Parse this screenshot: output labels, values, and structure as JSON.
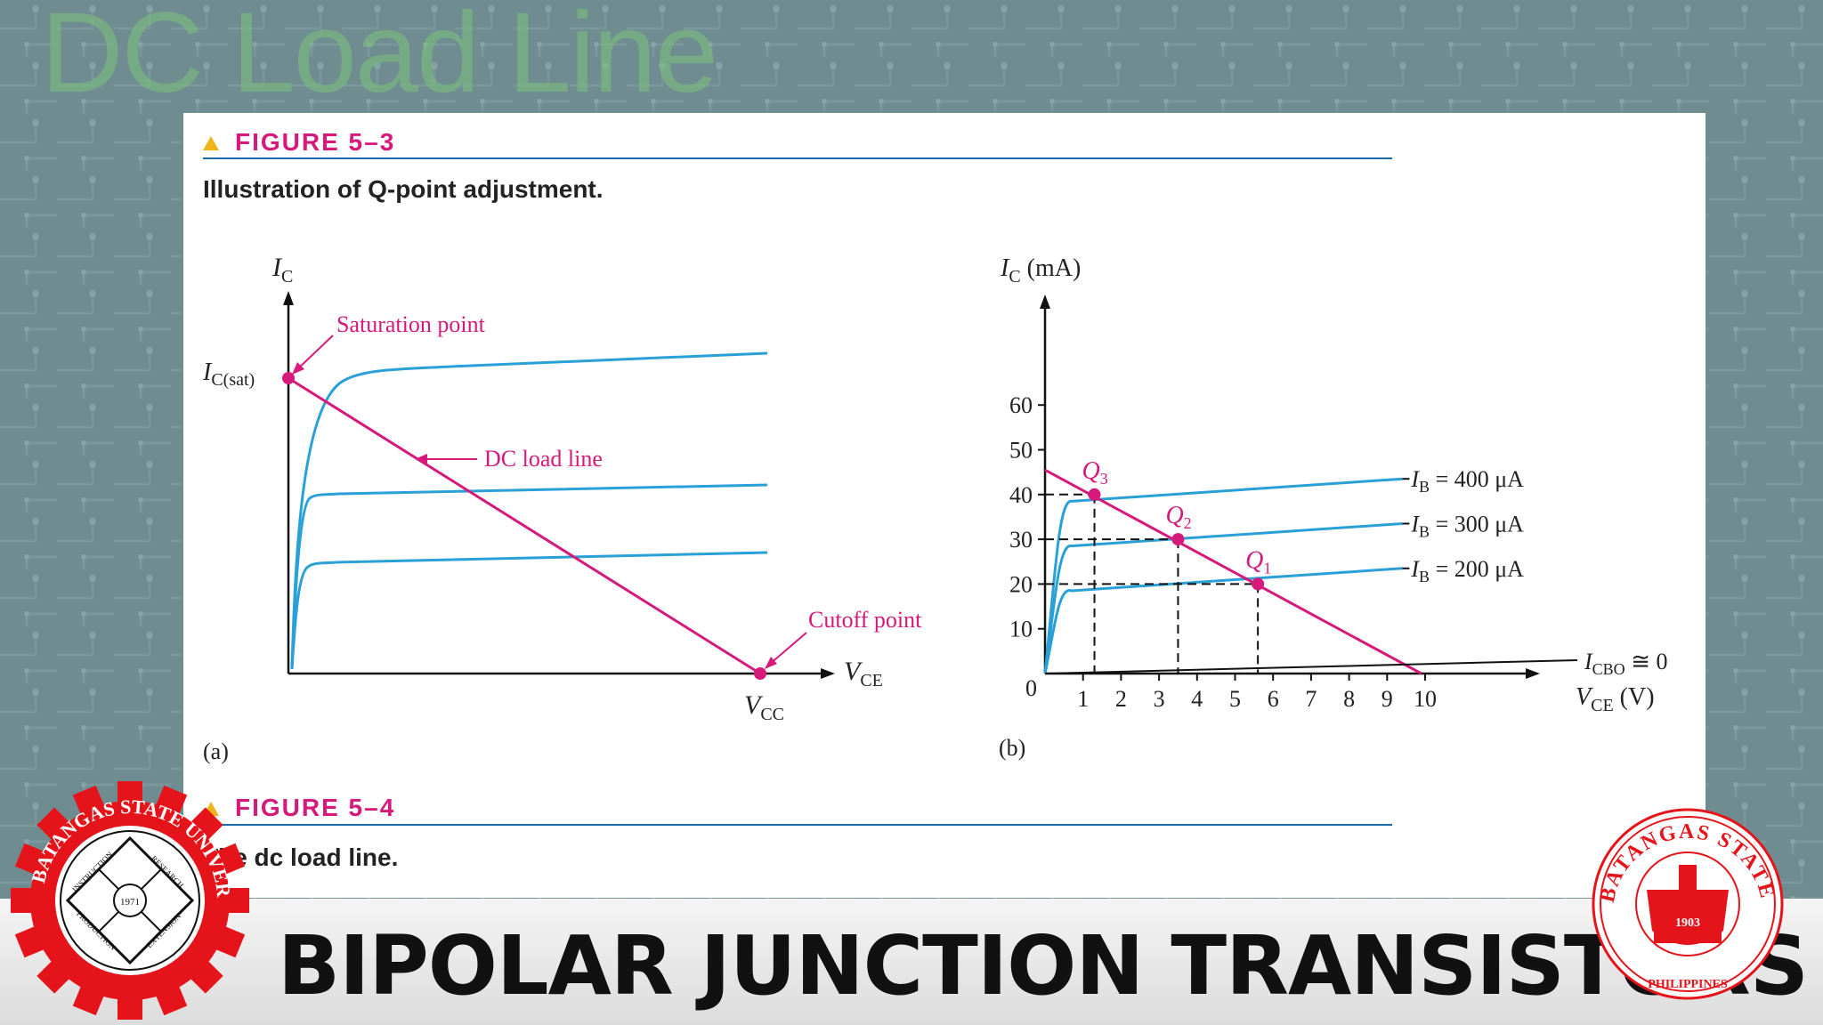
{
  "slide": {
    "title": "DC Load Line",
    "footer_title": "BIPOLAR JUNCTION TRANSISTORS"
  },
  "figure_5_3": {
    "label": "FIGURE 5–3",
    "caption": "Illustration of Q-point adjustment."
  },
  "figure_5_4": {
    "label": "FIGURE 5–4",
    "caption": "The dc load line."
  },
  "diagram_a": {
    "panel_label": "(a)",
    "y_axis": "I",
    "y_axis_sub": "C",
    "x_axis": "V",
    "x_axis_sub": "CE",
    "ic_sat": "I",
    "ic_sat_sub": "C(sat)",
    "vcc": "V",
    "vcc_sub": "CC",
    "saturation_label": "Saturation point",
    "load_line_label": "DC load line",
    "cutoff_label": "Cutoff point"
  },
  "diagram_b": {
    "panel_label": "(b)",
    "y_axis": "I",
    "y_axis_sub": "C",
    "y_unit": " (mA)",
    "x_axis": "V",
    "x_axis_sub": "CE",
    "x_unit": " (V)",
    "origin": "0",
    "y_ticks": [
      "10",
      "20",
      "30",
      "40",
      "50",
      "60"
    ],
    "x_ticks": [
      "1",
      "2",
      "3",
      "4",
      "5",
      "6",
      "7",
      "8",
      "9",
      "10"
    ],
    "curves": [
      {
        "ib_label": "I",
        "ib_sub": "B",
        "ib_value": " = 400 μA",
        "ic_mA": 40
      },
      {
        "ib_label": "I",
        "ib_sub": "B",
        "ib_value": " = 300 μA",
        "ic_mA": 30
      },
      {
        "ib_label": "I",
        "ib_sub": "B",
        "ib_value": " = 200 μA",
        "ic_mA": 20
      }
    ],
    "icbo_label": "I",
    "icbo_sub": "CBO",
    "icbo_value": " ≅ 0",
    "q_points": [
      {
        "label": "Q",
        "sub": "3",
        "vce": 1.3,
        "ic": 40
      },
      {
        "label": "Q",
        "sub": "2",
        "vce": 3.5,
        "ic": 30
      },
      {
        "label": "Q",
        "sub": "1",
        "vce": 5.6,
        "ic": 20
      }
    ]
  },
  "logos": {
    "left_ring_text": "BATANGAS STATE UNIVERSITY",
    "left_center_text": "1971",
    "left_quadrants": [
      "INSTRUCTION",
      "RESEARCH",
      "PRODUCTION",
      "EXTENSION"
    ],
    "right_ring_text": "BATANGAS STATE UNIVERSITY",
    "right_year": "1903",
    "right_bottom": "PHILIPPINES"
  },
  "colors": {
    "accent_magenta": "#d6197a",
    "curve_blue": "#2aa0d8",
    "figure_label": "#d6197a",
    "rule_blue": "#1a6aa8",
    "logo_red": "#e5141b"
  }
}
